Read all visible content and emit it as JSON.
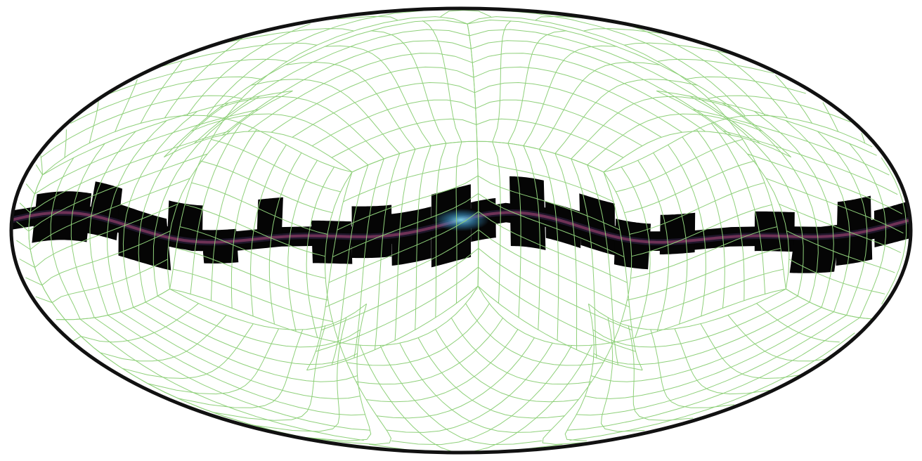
{
  "map": {
    "projection": "mollweide",
    "grid": "healpix",
    "colors": {
      "background": "#ffffff",
      "grid_line": "#8fd07a",
      "border": "#111111",
      "band": "#050505",
      "band_glow_core": "#5fc0d8",
      "band_glow_pink": "#b04a7a",
      "band_glow_purple": "#6a4a9a"
    },
    "band_features": [
      "milky-way-plane",
      "galactic-center-glow"
    ]
  }
}
